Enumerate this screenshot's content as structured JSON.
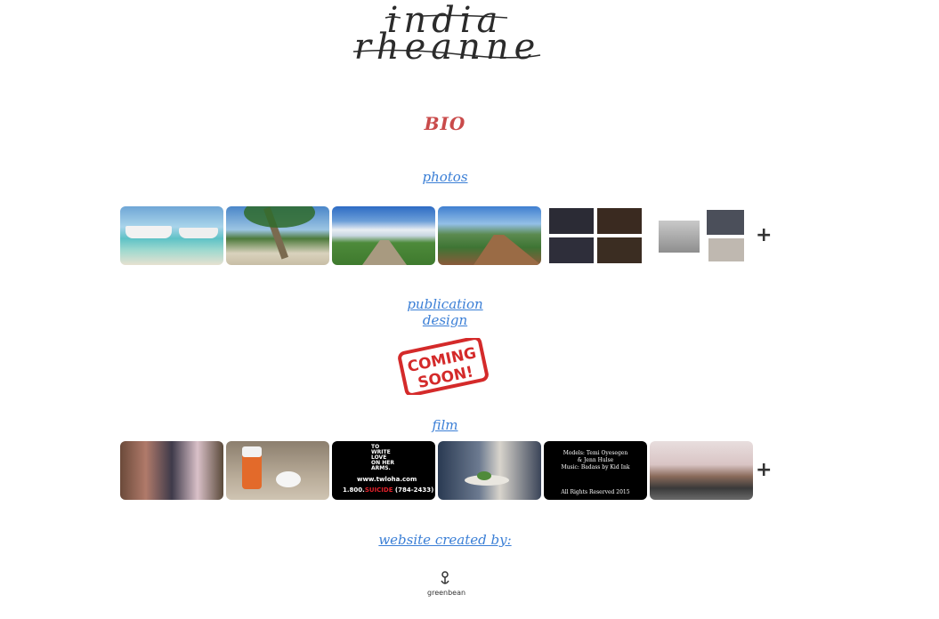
{
  "logo": {
    "line1": "india",
    "line2": "rheanne"
  },
  "nav": {
    "bio": "BIO",
    "photos": "photos",
    "publication_line1": "publication",
    "publication_line2": "design",
    "film": "film",
    "credits": "website created by:"
  },
  "photos": {
    "items": [
      "boats-on-beach",
      "palm-tree-beach",
      "boardwalk-field",
      "boardwalk-hills",
      "grid-portraits",
      "hooded-portraits"
    ],
    "more": "+"
  },
  "publication": {
    "stamp_line1": "COMING",
    "stamp_line2": "SOON!"
  },
  "film": {
    "items": [
      "group-party",
      "pill-bottle",
      "twloha-card",
      "skeleton-table",
      "credits-card",
      "cherry-blossoms"
    ],
    "more": "+",
    "twloha": {
      "line1": "TO",
      "line2": "WRITE",
      "line3": "LOVE",
      "line4": "ON HER",
      "line5": "ARMS.",
      "site": "www.twloha.com",
      "phone_prefix": "1.800.",
      "phone_word": "SUICIDE",
      "phone_num": " (784-2433)"
    },
    "credits_card": {
      "models": "Models: Temi Oyesegen",
      "models2": "& Jenn Hulse",
      "music": "Music: Badass by Kid Ink",
      "rights": "All Rights Reserved 2015"
    }
  },
  "credit": {
    "name": "greenbean"
  },
  "colors": {
    "link": "#3b7fd6",
    "bio": "#c94a4a",
    "stamp": "#d42a2a"
  }
}
